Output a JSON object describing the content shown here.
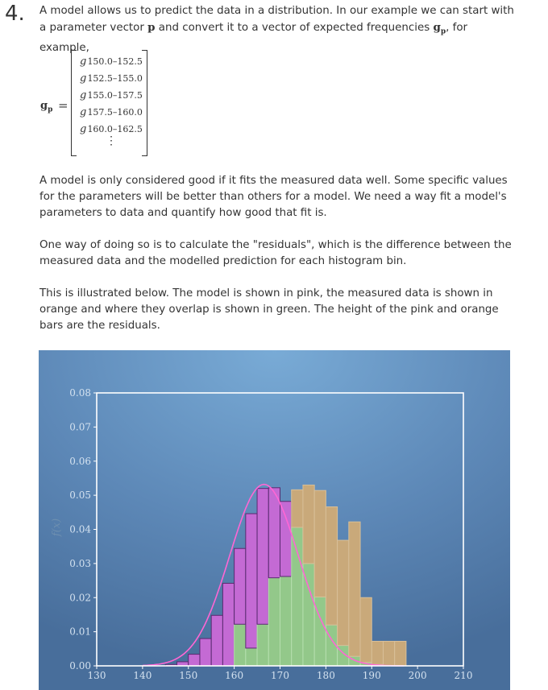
{
  "step": {
    "number": "4."
  },
  "paragraphs": {
    "intro_a": "A model allows us to predict the data in a distribution. In our example we can start with a parameter vector ",
    "intro_p": "p",
    "intro_b": " and convert it to a vector of expected frequencies ",
    "intro_g": "g",
    "intro_sub": "p",
    "intro_c": ", for example,",
    "model_good": "A model is only considered good if it fits the measured data well. Some specific values for the parameters will be better than others for a model. We need a way fit a model's parameters to data and quantify how good that fit is.",
    "residuals": "One way of doing so is to calculate the \"residuals\", which is the difference between the measured data and the modelled prediction for each histogram bin.",
    "illustrated": "This is illustrated below. The model is shown in pink, the measured data is shown in orange and where they overlap is shown in green. The height of the pink and orange bars are the residuals."
  },
  "vector": {
    "label": "g",
    "label_sub": "p",
    "equals": "=",
    "entry_symbol": "g",
    "entries": [
      "150.0–152.5",
      "152.5–155.0",
      "155.0–157.5",
      "157.5–160.0",
      "160.0–162.5"
    ],
    "continuation": "⋮"
  },
  "chart_data": {
    "type": "bar",
    "ylabel": "f(x)",
    "xlim": [
      130,
      210
    ],
    "ylim": [
      0,
      0.08
    ],
    "xticks": [
      130,
      140,
      150,
      160,
      170,
      180,
      190,
      200,
      210
    ],
    "yticks": [
      0.0,
      0.01,
      0.02,
      0.03,
      0.04,
      0.05,
      0.06,
      0.07,
      0.08
    ],
    "bin_width": 2.5,
    "bins_start": [
      145.0,
      147.5,
      150.0,
      152.5,
      155.0,
      157.5,
      160.0,
      162.5,
      165.0,
      167.5,
      170.0,
      172.5,
      175.0,
      177.5,
      180.0,
      182.5,
      185.0,
      187.5,
      190.0,
      192.5,
      195.0,
      197.5
    ],
    "series": [
      {
        "name": "model",
        "color": "#c46ad4",
        "values": [
          0.0004,
          0.0012,
          0.0034,
          0.008,
          0.0148,
          0.0242,
          0.0344,
          0.0446,
          0.052,
          0.0522,
          0.0482,
          0.0406,
          0.03,
          0.0202,
          0.012,
          0.006,
          0.0028,
          0.001,
          0.0004,
          0.0001,
          0.0,
          0.0
        ]
      },
      {
        "name": "measured",
        "color": "#c9a97a",
        "values": [
          0.0,
          0.0,
          0.0,
          0.0,
          0.0,
          0.0,
          0.0122,
          0.0052,
          0.0122,
          0.0258,
          0.0262,
          0.0516,
          0.053,
          0.0514,
          0.0466,
          0.0368,
          0.0422,
          0.02,
          0.0072,
          0.0072,
          0.0072,
          0.0
        ]
      }
    ],
    "overlap_color": "#93c88a",
    "curve_color": "#ff66d4",
    "curve": {
      "mean": 166.5,
      "sd": 7.5
    },
    "grid": false,
    "legend": "none"
  }
}
